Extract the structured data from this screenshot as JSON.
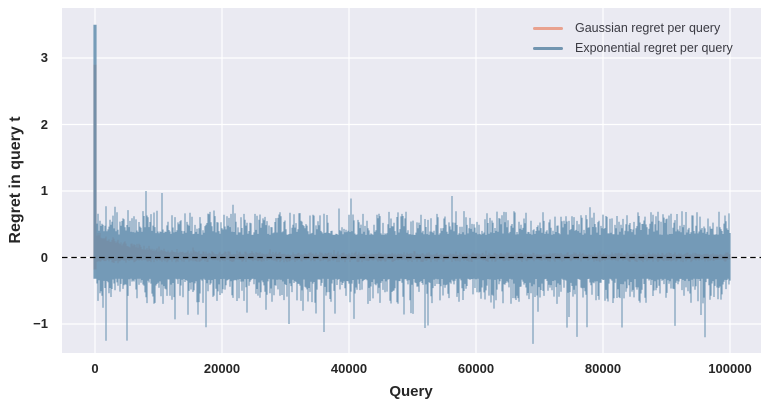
{
  "chart_data": {
    "type": "line",
    "title": "",
    "xlabel": "Query",
    "ylabel": "Regret in query t",
    "x_ticks": [
      0,
      20000,
      40000,
      60000,
      80000,
      100000
    ],
    "x_tick_labels": [
      "0",
      "20000",
      "40000",
      "60000",
      "80000",
      "100000"
    ],
    "y_ticks": [
      3,
      2,
      1,
      0,
      -1
    ],
    "y_tick_labels": [
      "3",
      "2",
      "1",
      "0",
      "−1"
    ],
    "xlim": [
      -5200,
      104900
    ],
    "ylim": [
      -1.43,
      3.76
    ],
    "grid": true,
    "legend_position": "upper right",
    "zero_line": {
      "y": 0,
      "style": "dashed",
      "color": "#000000"
    },
    "series": [
      {
        "name": "Gaussian regret per query",
        "color": "#e9a28f",
        "x_range": [
          0,
          100000
        ],
        "initial_peak": {
          "x": 0,
          "y": 2.9
        },
        "behavior": "spikes to ~2.9 at t=0 then decays to a thin noise band just above zero; mostly hidden beneath the blue series",
        "envelope": {
          "start_amplitude": 0.3,
          "decay_scale_x": 5500,
          "steady_top": 0.1,
          "steady_bottom": -0.07
        }
      },
      {
        "name": "Exponential regret per query",
        "color": "#7295b0",
        "x_range": [
          0,
          100000
        ],
        "initial_peak": {
          "x": 0,
          "y": 3.5
        },
        "behavior": "stationary noise band around zero across all 100000 queries",
        "typical_band": [
          -0.65,
          0.68
        ],
        "extremes": [
          {
            "x": 5000,
            "y": -1.25
          },
          {
            "x": 8000,
            "y": 1.0
          },
          {
            "x": 10500,
            "y": 0.97
          },
          {
            "x": 17500,
            "y": -1.05
          },
          {
            "x": 30500,
            "y": -1.0
          },
          {
            "x": 36000,
            "y": -1.12
          },
          {
            "x": 52000,
            "y": -1.06
          },
          {
            "x": 69000,
            "y": -1.3
          },
          {
            "x": 77500,
            "y": -1.05
          },
          {
            "x": 96000,
            "y": -1.2
          }
        ]
      }
    ],
    "colors": {
      "plot_background": "#eaeaf2",
      "grid": "#ffffff",
      "blue_fill": "#5f8cad",
      "salmon_fill": "#e9a28f",
      "tick_text": "#262626",
      "legend_text": "#3a3a42"
    },
    "render_seed": 1337
  }
}
